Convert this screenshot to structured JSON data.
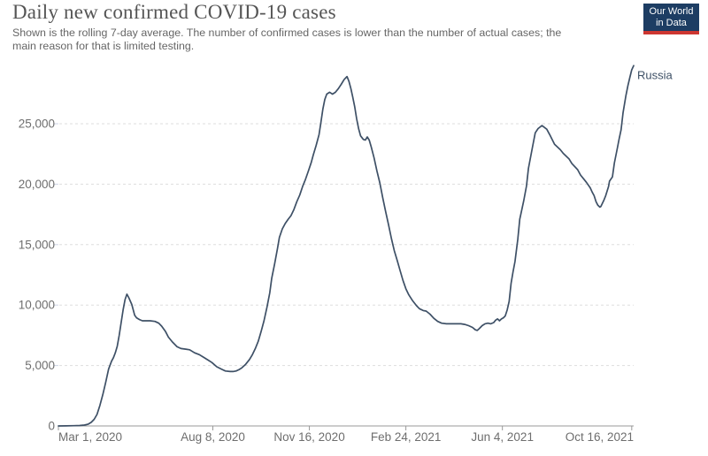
{
  "header": {
    "title": "Daily new confirmed COVID-19 cases",
    "subtitle_line1": "Shown is the rolling 7-day average. The number of confirmed cases is lower than the number of actual cases; the",
    "subtitle_line2": "main reason for that is limited testing.",
    "logo": {
      "line1": "Our World",
      "line2": "in Data",
      "bg": "#1d3d63",
      "accent": "#cd3731",
      "text_color": "#ffffff"
    }
  },
  "chart_data": {
    "type": "line",
    "title": "Daily new confirmed COVID-19 cases",
    "x_axis": {
      "unit": "days since Mar 1, 2020",
      "domain": [
        0,
        596
      ],
      "ticks": [
        {
          "day": 0,
          "label": "Mar 1, 2020"
        },
        {
          "day": 160,
          "label": "Aug 8, 2020"
        },
        {
          "day": 260,
          "label": "Nov 16, 2020"
        },
        {
          "day": 360,
          "label": "Feb 24, 2021"
        },
        {
          "day": 460,
          "label": "Jun 4, 2021"
        },
        {
          "day": 594,
          "label": "Oct 16, 2021"
        }
      ]
    },
    "y_axis": {
      "domain": [
        0,
        30500
      ],
      "gridlines": "dashed",
      "ticks": [
        {
          "value": 0,
          "label": "0"
        },
        {
          "value": 5000,
          "label": "5,000"
        },
        {
          "value": 10000,
          "label": "10,000"
        },
        {
          "value": 15000,
          "label": "15,000"
        },
        {
          "value": 20000,
          "label": "20,000"
        },
        {
          "value": 25000,
          "label": "25,000"
        }
      ]
    },
    "styles": {
      "gridline_color": "#dddddd",
      "axis_color": "#999999",
      "tick_label_color": "#6e6e6e",
      "y_minor_tick_color": "#ccd3e4"
    },
    "end_label": "Russia",
    "series": [
      {
        "name": "Russia",
        "color": "#3e5066",
        "points": [
          [
            0,
            0
          ],
          [
            8,
            10
          ],
          [
            16,
            20
          ],
          [
            22,
            40
          ],
          [
            27,
            70
          ],
          [
            31,
            150
          ],
          [
            34,
            300
          ],
          [
            37,
            550
          ],
          [
            40,
            950
          ],
          [
            43,
            1700
          ],
          [
            46,
            2600
          ],
          [
            49,
            3600
          ],
          [
            52,
            4700
          ],
          [
            55,
            5350
          ],
          [
            57,
            5650
          ],
          [
            59,
            6050
          ],
          [
            61,
            6600
          ],
          [
            63,
            7500
          ],
          [
            65,
            8550
          ],
          [
            67,
            9600
          ],
          [
            69,
            10450
          ],
          [
            71,
            10900
          ],
          [
            73,
            10600
          ],
          [
            76,
            10050
          ],
          [
            79,
            9150
          ],
          [
            81,
            8950
          ],
          [
            84,
            8800
          ],
          [
            87,
            8700
          ],
          [
            91,
            8700
          ],
          [
            95,
            8700
          ],
          [
            100,
            8650
          ],
          [
            104,
            8500
          ],
          [
            107,
            8250
          ],
          [
            111,
            7800
          ],
          [
            114,
            7350
          ],
          [
            118,
            6950
          ],
          [
            123,
            6550
          ],
          [
            127,
            6400
          ],
          [
            132,
            6350
          ],
          [
            136,
            6300
          ],
          [
            141,
            6050
          ],
          [
            146,
            5900
          ],
          [
            150,
            5700
          ],
          [
            155,
            5450
          ],
          [
            159,
            5250
          ],
          [
            164,
            4900
          ],
          [
            169,
            4700
          ],
          [
            173,
            4550
          ],
          [
            178,
            4500
          ],
          [
            181,
            4500
          ],
          [
            184,
            4550
          ],
          [
            187,
            4650
          ],
          [
            190,
            4800
          ],
          [
            194,
            5100
          ],
          [
            198,
            5500
          ],
          [
            201,
            5900
          ],
          [
            204,
            6400
          ],
          [
            207,
            7000
          ],
          [
            210,
            7800
          ],
          [
            213,
            8700
          ],
          [
            216,
            9800
          ],
          [
            219,
            11000
          ],
          [
            221,
            12200
          ],
          [
            224,
            13400
          ],
          [
            227,
            14700
          ],
          [
            229,
            15600
          ],
          [
            232,
            16300
          ],
          [
            235,
            16750
          ],
          [
            238,
            17100
          ],
          [
            241,
            17400
          ],
          [
            244,
            17900
          ],
          [
            247,
            18550
          ],
          [
            250,
            19100
          ],
          [
            253,
            19800
          ],
          [
            256,
            20400
          ],
          [
            259,
            21100
          ],
          [
            262,
            21800
          ],
          [
            264,
            22400
          ],
          [
            267,
            23200
          ],
          [
            270,
            24100
          ],
          [
            272,
            25100
          ],
          [
            274,
            26200
          ],
          [
            276,
            27000
          ],
          [
            278,
            27450
          ],
          [
            281,
            27600
          ],
          [
            284,
            27450
          ],
          [
            287,
            27600
          ],
          [
            290,
            27900
          ],
          [
            293,
            28250
          ],
          [
            296,
            28650
          ],
          [
            299,
            28900
          ],
          [
            301,
            28500
          ],
          [
            303,
            27900
          ],
          [
            305,
            27200
          ],
          [
            307,
            26400
          ],
          [
            309,
            25400
          ],
          [
            311,
            24600
          ],
          [
            313,
            24000
          ],
          [
            316,
            23700
          ],
          [
            318,
            23650
          ],
          [
            320,
            23900
          ],
          [
            322,
            23650
          ],
          [
            324,
            23100
          ],
          [
            327,
            22200
          ],
          [
            330,
            21100
          ],
          [
            333,
            20100
          ],
          [
            336,
            18900
          ],
          [
            339,
            17750
          ],
          [
            342,
            16650
          ],
          [
            345,
            15500
          ],
          [
            348,
            14500
          ],
          [
            351,
            13700
          ],
          [
            354,
            12850
          ],
          [
            357,
            12050
          ],
          [
            360,
            11350
          ],
          [
            363,
            10850
          ],
          [
            367,
            10350
          ],
          [
            371,
            9950
          ],
          [
            374,
            9700
          ],
          [
            378,
            9550
          ],
          [
            381,
            9500
          ],
          [
            385,
            9250
          ],
          [
            389,
            8900
          ],
          [
            393,
            8650
          ],
          [
            397,
            8500
          ],
          [
            402,
            8450
          ],
          [
            407,
            8450
          ],
          [
            412,
            8450
          ],
          [
            417,
            8450
          ],
          [
            421,
            8400
          ],
          [
            425,
            8300
          ],
          [
            429,
            8150
          ],
          [
            432,
            7950
          ],
          [
            434,
            7900
          ],
          [
            436,
            8050
          ],
          [
            439,
            8300
          ],
          [
            442,
            8450
          ],
          [
            445,
            8500
          ],
          [
            448,
            8450
          ],
          [
            451,
            8550
          ],
          [
            453,
            8750
          ],
          [
            455,
            8850
          ],
          [
            457,
            8700
          ],
          [
            459,
            8850
          ],
          [
            461,
            8950
          ],
          [
            463,
            9100
          ],
          [
            465,
            9600
          ],
          [
            467,
            10300
          ],
          [
            469,
            11800
          ],
          [
            471,
            12750
          ],
          [
            473,
            13600
          ],
          [
            476,
            15450
          ],
          [
            478,
            17100
          ],
          [
            482,
            18600
          ],
          [
            485,
            19850
          ],
          [
            487,
            21300
          ],
          [
            491,
            23000
          ],
          [
            494,
            24250
          ],
          [
            497,
            24600
          ],
          [
            501,
            24850
          ],
          [
            506,
            24550
          ],
          [
            509,
            24100
          ],
          [
            514,
            23300
          ],
          [
            520,
            22850
          ],
          [
            523,
            22550
          ],
          [
            529,
            22100
          ],
          [
            532,
            21700
          ],
          [
            538,
            21200
          ],
          [
            541,
            20750
          ],
          [
            544,
            20450
          ],
          [
            547,
            20150
          ],
          [
            551,
            19700
          ],
          [
            553,
            19350
          ],
          [
            555,
            19050
          ],
          [
            557,
            18550
          ],
          [
            559,
            18250
          ],
          [
            561,
            18100
          ],
          [
            562,
            18150
          ],
          [
            565,
            18650
          ],
          [
            567,
            19050
          ],
          [
            570,
            19800
          ],
          [
            571,
            20250
          ],
          [
            574,
            20600
          ],
          [
            576,
            21750
          ],
          [
            579,
            22950
          ],
          [
            581,
            23750
          ],
          [
            583,
            24500
          ],
          [
            585,
            25900
          ],
          [
            588,
            27350
          ],
          [
            590,
            28150
          ],
          [
            592,
            28800
          ],
          [
            594,
            29450
          ],
          [
            596,
            29800
          ]
        ]
      }
    ]
  }
}
